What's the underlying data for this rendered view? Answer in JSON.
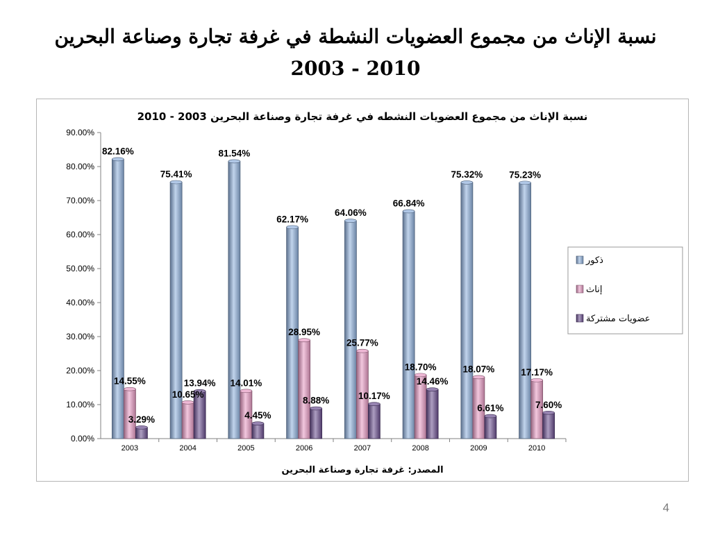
{
  "slide": {
    "title_line1": "نسبة الإناث من مجموع العضويات النشطة في غرفة تجارة وصناعة البحرين",
    "title_line2": "2003 - 2010",
    "page_number": "4"
  },
  "chart_data": {
    "type": "bar",
    "title": "نسبة الإناث من مجموع العضويات النشطه في غرفة تجارة وصناعة البحرين 2003 - 2010",
    "source": "المصدر: غرفة تجارة وصناعة البحرين",
    "categories": [
      "2003",
      "2004",
      "2005",
      "2006",
      "2007",
      "2008",
      "2009",
      "2010"
    ],
    "series": [
      {
        "name": "ذكور",
        "values": [
          82.16,
          75.41,
          81.54,
          62.17,
          64.06,
          66.84,
          75.32,
          75.23
        ],
        "color": "#8fb0dc"
      },
      {
        "name": "إناث",
        "values": [
          14.55,
          10.65,
          14.01,
          28.95,
          25.77,
          18.7,
          18.07,
          17.17
        ],
        "color": "#e79ac3"
      },
      {
        "name": "عضويات مشتركة",
        "values": [
          3.29,
          13.94,
          4.45,
          8.88,
          10.17,
          14.46,
          6.61,
          7.6
        ],
        "color": "#6a4f8f"
      }
    ],
    "ylim": [
      0,
      90
    ],
    "yticks": [
      "0.00%",
      "10.00%",
      "20.00%",
      "30.00%",
      "40.00%",
      "50.00%",
      "60.00%",
      "70.00%",
      "80.00%",
      "90.00%"
    ],
    "value_format": "percent",
    "legend_position": "right",
    "grid": false
  }
}
